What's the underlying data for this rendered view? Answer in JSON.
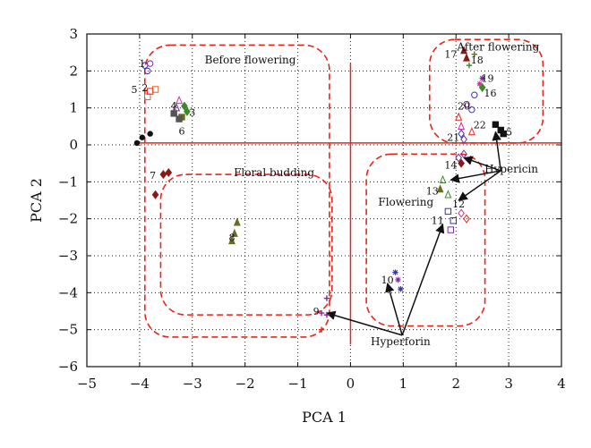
{
  "chart_data": {
    "type": "scatter",
    "xlabel": "PCA 1",
    "ylabel": "PCA 2",
    "xlim": [
      -5,
      4
    ],
    "ylim": [
      -6,
      3
    ],
    "xticks": [
      -5,
      -4,
      -3,
      -2,
      -1,
      0,
      1,
      2,
      3,
      4
    ],
    "yticks": [
      -6,
      -5,
      -4,
      -3,
      -2,
      -1,
      0,
      1,
      2,
      3
    ],
    "grid": "dotted",
    "colors": {
      "black": "#111111",
      "red": "#e8251a",
      "dark_red": "#8b1a12",
      "blue": "#3333cc",
      "purple": "#7a2a9a",
      "magenta": "#d0309a",
      "orange": "#e06020",
      "olive": "#6b6b1f",
      "green": "#3a8a2a",
      "gray": "#555555"
    },
    "group_labels": [
      {
        "text": "Before flowering",
        "x": -1.9,
        "y": 2.2
      },
      {
        "text": "Floral budding",
        "x": -1.45,
        "y": -0.85
      },
      {
        "text": "After flowering",
        "x": 2.8,
        "y": 2.55
      },
      {
        "text": "Flowering",
        "x": 1.05,
        "y": -1.65
      },
      {
        "text": "Hypericin",
        "x": 3.05,
        "y": -0.75
      },
      {
        "text": "Hyperforin",
        "x": 0.95,
        "y": -5.42
      }
    ],
    "points": [
      {
        "x": -3.9,
        "y": 2.15,
        "marker": "circle",
        "color": "blue"
      },
      {
        "x": -3.8,
        "y": 2.2,
        "marker": "circle",
        "color": "purple"
      },
      {
        "x": -3.85,
        "y": 2.0,
        "marker": "circle",
        "color": "blue"
      },
      {
        "x": -3.85,
        "y": 1.3,
        "marker": "square",
        "color": "orange"
      },
      {
        "x": -3.8,
        "y": 1.45,
        "marker": "square",
        "color": "red"
      },
      {
        "x": -3.7,
        "y": 1.5,
        "marker": "square",
        "color": "orange"
      },
      {
        "x": -3.25,
        "y": 1.2,
        "marker": "triangle",
        "color": "magenta"
      },
      {
        "x": -3.3,
        "y": 1.0,
        "marker": "triangle",
        "color": "purple"
      },
      {
        "x": -3.35,
        "y": 0.85,
        "marker": "square",
        "color": "gray"
      },
      {
        "x": -3.2,
        "y": 0.75,
        "marker": "square",
        "color": "olive"
      },
      {
        "x": -3.1,
        "y": 0.9,
        "marker": "diamond",
        "color": "green"
      },
      {
        "x": -3.15,
        "y": 1.05,
        "marker": "diamond",
        "color": "green"
      },
      {
        "x": -3.25,
        "y": 0.7,
        "marker": "square",
        "color": "gray"
      },
      {
        "x": -4.05,
        "y": 0.05,
        "marker": "dot",
        "color": "black"
      },
      {
        "x": -3.95,
        "y": 0.2,
        "marker": "dot",
        "color": "black"
      },
      {
        "x": -3.8,
        "y": 0.3,
        "marker": "dot",
        "color": "black"
      },
      {
        "x": -3.55,
        "y": -0.8,
        "marker": "diamond",
        "color": "dark_red"
      },
      {
        "x": -3.45,
        "y": -0.75,
        "marker": "diamond",
        "color": "dark_red"
      },
      {
        "x": -3.7,
        "y": -1.35,
        "marker": "diamond",
        "color": "dark_red"
      },
      {
        "x": -2.15,
        "y": -2.1,
        "marker": "triangle",
        "color": "olive"
      },
      {
        "x": -2.2,
        "y": -2.4,
        "marker": "triangle",
        "color": "olive"
      },
      {
        "x": -2.25,
        "y": -2.6,
        "marker": "triangle",
        "color": "olive"
      },
      {
        "x": -0.45,
        "y": -4.15,
        "marker": "plus",
        "color": "purple"
      },
      {
        "x": -0.55,
        "y": -4.55,
        "marker": "plus",
        "color": "purple"
      },
      {
        "x": -0.45,
        "y": -4.6,
        "marker": "plus",
        "color": "purple"
      },
      {
        "x": -0.55,
        "y": -5.0,
        "marker": "plus",
        "color": "red"
      },
      {
        "x": 0.85,
        "y": -3.45,
        "marker": "asterisk",
        "color": "blue"
      },
      {
        "x": 0.9,
        "y": -3.65,
        "marker": "asterisk",
        "color": "purple"
      },
      {
        "x": 0.95,
        "y": -3.9,
        "marker": "asterisk",
        "color": "blue"
      },
      {
        "x": 1.85,
        "y": -1.8,
        "marker": "square",
        "color": "blue"
      },
      {
        "x": 1.95,
        "y": -2.05,
        "marker": "square",
        "color": "blue"
      },
      {
        "x": 1.9,
        "y": -2.3,
        "marker": "square",
        "color": "purple"
      },
      {
        "x": 2.1,
        "y": -1.85,
        "marker": "diamond",
        "color": "magenta"
      },
      {
        "x": 2.2,
        "y": -2.0,
        "marker": "diamond",
        "color": "red"
      },
      {
        "x": 1.75,
        "y": -0.95,
        "marker": "triangle",
        "color": "green"
      },
      {
        "x": 1.7,
        "y": -1.2,
        "marker": "triangle",
        "color": "olive"
      },
      {
        "x": 1.85,
        "y": -1.35,
        "marker": "triangle",
        "color": "green"
      },
      {
        "x": 2.05,
        "y": -0.35,
        "marker": "diamond",
        "color": "purple"
      },
      {
        "x": 2.1,
        "y": -0.5,
        "marker": "diamond",
        "color": "dark_red"
      },
      {
        "x": 2.15,
        "y": -0.25,
        "marker": "diamond",
        "color": "purple"
      },
      {
        "x": 2.15,
        "y": 2.55,
        "marker": "triangle",
        "color": "dark_red"
      },
      {
        "x": 2.2,
        "y": 2.35,
        "marker": "triangle",
        "color": "dark_red"
      },
      {
        "x": 2.35,
        "y": 2.45,
        "marker": "plus",
        "color": "olive"
      },
      {
        "x": 2.25,
        "y": 2.15,
        "marker": "plus",
        "color": "green"
      },
      {
        "x": 2.5,
        "y": 1.8,
        "marker": "asterisk",
        "color": "purple"
      },
      {
        "x": 2.45,
        "y": 1.65,
        "marker": "asterisk",
        "color": "magenta"
      },
      {
        "x": 2.5,
        "y": 1.55,
        "marker": "diamond",
        "color": "green"
      },
      {
        "x": 2.35,
        "y": 1.35,
        "marker": "circle",
        "color": "blue"
      },
      {
        "x": 2.2,
        "y": 1.1,
        "marker": "circle",
        "color": "purple"
      },
      {
        "x": 2.3,
        "y": 0.95,
        "marker": "circle",
        "color": "blue"
      },
      {
        "x": 2.05,
        "y": 0.75,
        "marker": "triangle",
        "color": "red"
      },
      {
        "x": 2.1,
        "y": 0.5,
        "marker": "triangle",
        "color": "magenta"
      },
      {
        "x": 2.3,
        "y": 0.35,
        "marker": "triangle",
        "color": "red"
      },
      {
        "x": 2.1,
        "y": 0.3,
        "marker": "diamond",
        "color": "blue"
      },
      {
        "x": 2.15,
        "y": 0.15,
        "marker": "diamond",
        "color": "purple"
      },
      {
        "x": 2.75,
        "y": 0.55,
        "marker": "square",
        "color": "black"
      },
      {
        "x": 2.85,
        "y": 0.4,
        "marker": "square",
        "color": "black"
      },
      {
        "x": 2.9,
        "y": 0.3,
        "marker": "square",
        "color": "black"
      }
    ],
    "point_labels": [
      {
        "text": "1",
        "x": -3.95,
        "y": 2.2
      },
      {
        "text": "2",
        "x": -3.9,
        "y": 1.55
      },
      {
        "text": "3",
        "x": -3.0,
        "y": 0.88
      },
      {
        "text": "4",
        "x": -3.35,
        "y": 1.05
      },
      {
        "text": "5",
        "x": -4.1,
        "y": 1.5
      },
      {
        "text": "6",
        "x": -3.2,
        "y": 0.38
      },
      {
        "text": "7",
        "x": -3.75,
        "y": -0.82
      },
      {
        "text": "8",
        "x": -2.25,
        "y": -2.5
      },
      {
        "text": "9",
        "x": -0.65,
        "y": -4.5
      },
      {
        "text": "10",
        "x": 0.7,
        "y": -3.65
      },
      {
        "text": "11",
        "x": 1.65,
        "y": -2.05
      },
      {
        "text": "12",
        "x": 2.05,
        "y": -1.6
      },
      {
        "text": "13",
        "x": 1.55,
        "y": -1.25
      },
      {
        "text": "14",
        "x": 1.9,
        "y": -0.55
      },
      {
        "text": "15",
        "x": 2.95,
        "y": 0.35
      },
      {
        "text": "16",
        "x": 2.65,
        "y": 1.4
      },
      {
        "text": "17",
        "x": 1.9,
        "y": 2.45
      },
      {
        "text": "18",
        "x": 2.4,
        "y": 2.3
      },
      {
        "text": "19",
        "x": 2.6,
        "y": 1.8
      },
      {
        "text": "20",
        "x": 2.15,
        "y": 1.05
      },
      {
        "text": "21",
        "x": 1.95,
        "y": 0.2
      },
      {
        "text": "22",
        "x": 2.45,
        "y": 0.55
      }
    ],
    "center_lines": [
      {
        "x1": -4.05,
        "y1": 0.05,
        "x2": 4.0,
        "y2": 0.05
      },
      {
        "x1": 0.0,
        "y1": 2.2,
        "x2": 0.0,
        "y2": -5.4
      }
    ],
    "group_boxes": [
      {
        "path": [
          [
            -2.05,
            2.7
          ],
          [
            -0.4,
            2.7
          ],
          [
            -0.4,
            0.2
          ],
          [
            -0.4,
            -5.2
          ],
          [
            -3.9,
            -5.2
          ],
          [
            -3.9,
            2.7
          ]
        ]
      },
      {
        "path": [
          [
            -1.9,
            -0.8
          ],
          [
            -0.35,
            -0.8
          ],
          [
            -0.35,
            -4.6
          ],
          [
            -3.6,
            -4.6
          ],
          [
            -3.6,
            -0.8
          ]
        ]
      },
      {
        "path": [
          [
            1.65,
            2.85
          ],
          [
            3.65,
            2.85
          ],
          [
            3.65,
            0.05
          ],
          [
            1.5,
            0.05
          ],
          [
            1.5,
            2.85
          ]
        ]
      },
      {
        "path": [
          [
            1.4,
            -0.25
          ],
          [
            2.55,
            -0.25
          ],
          [
            2.55,
            -4.9
          ],
          [
            0.3,
            -4.9
          ],
          [
            0.3,
            -0.25
          ]
        ]
      }
    ],
    "arrows": [
      {
        "x1": 2.85,
        "y1": -0.7,
        "x2": 2.75,
        "y2": 0.35
      },
      {
        "x1": 2.85,
        "y1": -0.7,
        "x2": 2.15,
        "y2": -0.35
      },
      {
        "x1": 2.85,
        "y1": -0.7,
        "x2": 1.9,
        "y2": -0.95
      },
      {
        "x1": 2.85,
        "y1": -0.7,
        "x2": 2.05,
        "y2": -1.5
      },
      {
        "x1": 0.98,
        "y1": -5.15,
        "x2": 1.75,
        "y2": -2.15
      },
      {
        "x1": 0.98,
        "y1": -5.15,
        "x2": 0.7,
        "y2": -3.75
      },
      {
        "x1": 0.98,
        "y1": -5.15,
        "x2": -0.45,
        "y2": -4.55
      }
    ]
  }
}
